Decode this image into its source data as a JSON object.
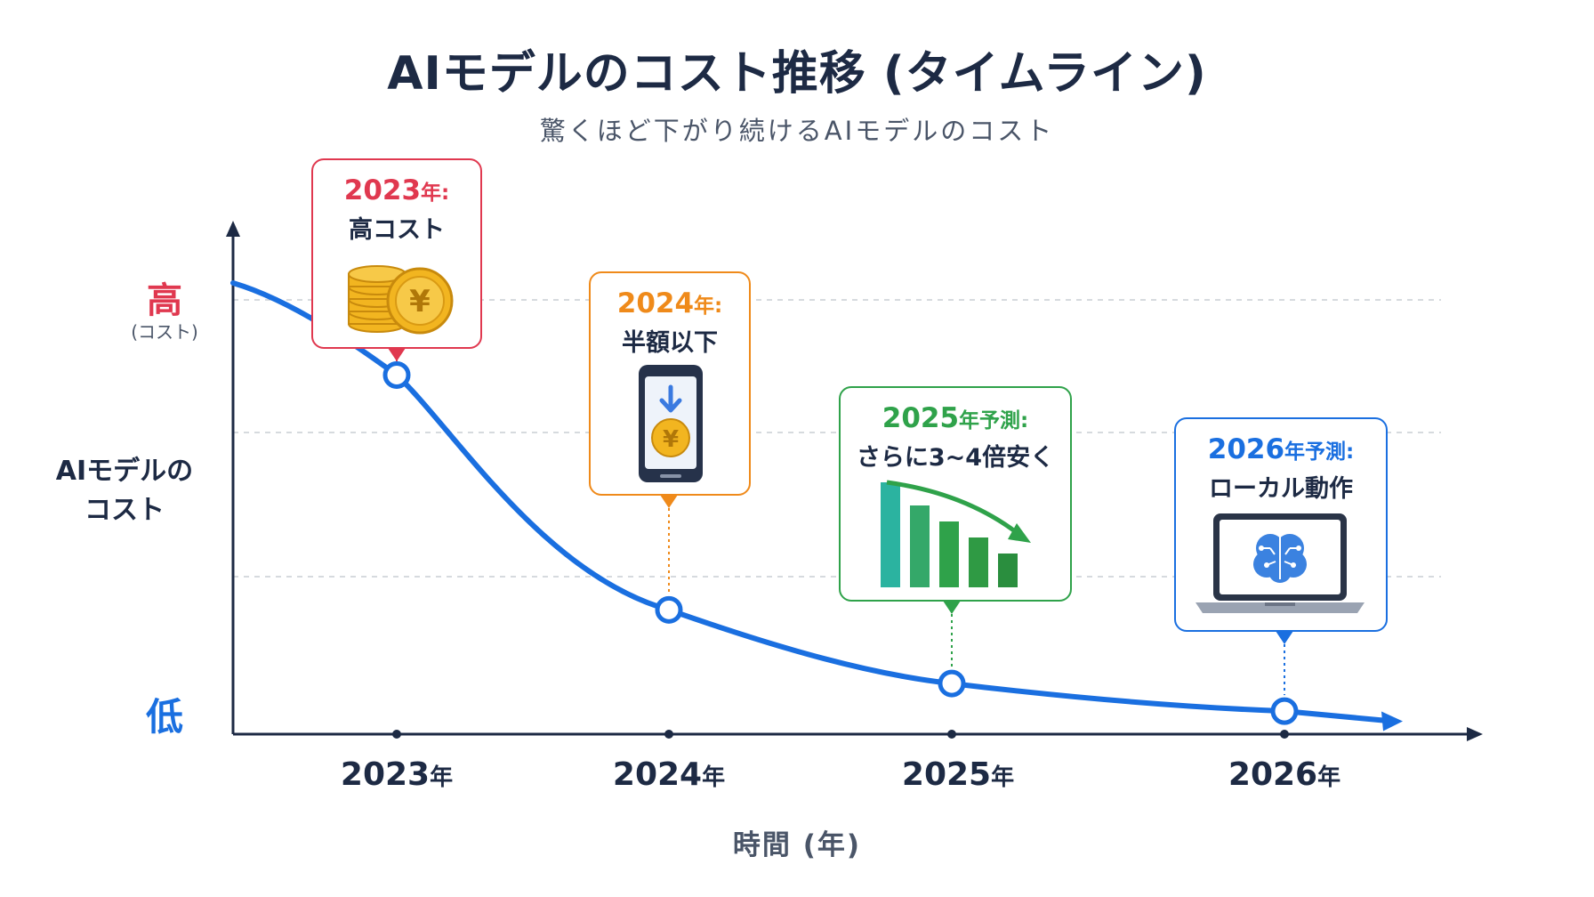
{
  "title": "AIモデルのコスト推移 (タイムライン)",
  "subtitle": "驚くほど下がり続けるAIモデルのコスト",
  "colors": {
    "red": "#e0384f",
    "orange": "#ef8a1a",
    "green": "#2fa24a",
    "blue": "#1a6fe0",
    "axis": "#1d2a44"
  },
  "chart_data": {
    "type": "line",
    "x": [
      2023,
      2024,
      2025,
      2026
    ],
    "values": [
      0.78,
      0.27,
      0.11,
      0.05
    ],
    "ylabel_high": "高",
    "ylabel_high_sub": "(コスト)",
    "ylabel_title": [
      "AIモデルの",
      "コスト"
    ],
    "ylabel_low": "低",
    "tick_labels": [
      {
        "num": "2023",
        "suffix": "年"
      },
      {
        "num": "2024",
        "suffix": "年"
      },
      {
        "num": "2025",
        "suffix": "年"
      },
      {
        "num": "2026",
        "suffix": "年"
      }
    ],
    "xlabel": "時間 (年)",
    "grid": "dashed",
    "annotations": [
      {
        "year": "2023",
        "suffix": "年:",
        "text": "高コスト",
        "color": "red",
        "icon": "coin-stack-icon"
      },
      {
        "year": "2024",
        "suffix": "年:",
        "text": "半額以下",
        "color": "orange",
        "icon": "smartphone-coin-icon"
      },
      {
        "year": "2025",
        "suffix": "年予測:",
        "text": "さらに3~4倍安く",
        "color": "green",
        "icon": "bar-decline-icon"
      },
      {
        "year": "2026",
        "suffix": "年予測:",
        "text": "ローカル動作",
        "color": "blue",
        "icon": "laptop-brain-icon"
      }
    ]
  }
}
